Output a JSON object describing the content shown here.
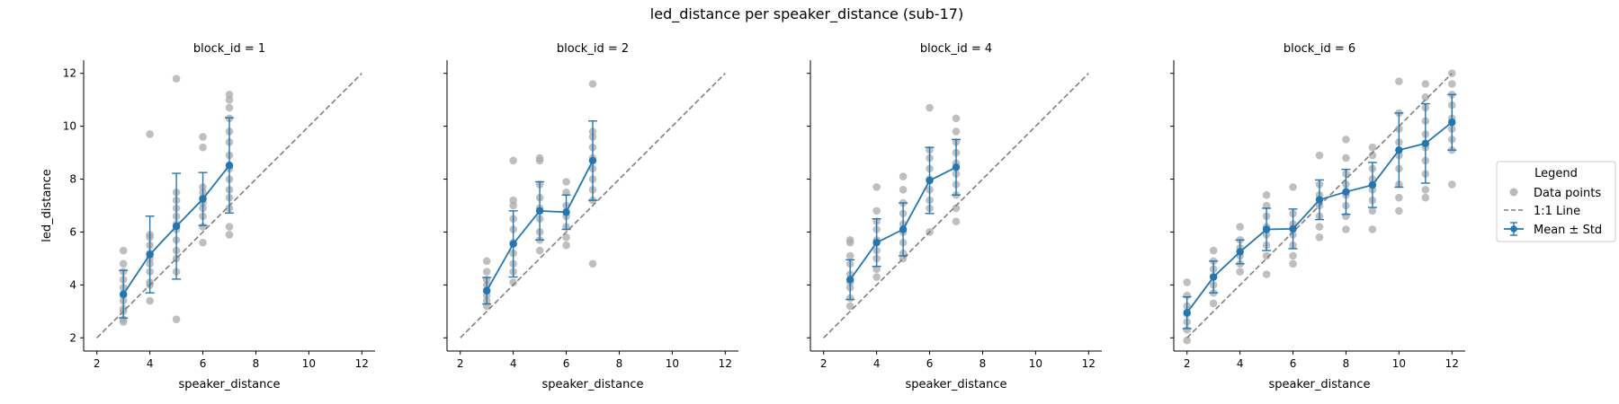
{
  "figure": {
    "title": "led_distance per speaker_distance (sub-17)"
  },
  "colors": {
    "mean": "#1f77b4",
    "points": "#a9a9a9",
    "ref_line": "#7f7f7f",
    "axes": "#000000"
  },
  "legend": {
    "title": "Legend",
    "placement": "right",
    "entries": [
      {
        "label": "Data points",
        "marker": "grey-dot"
      },
      {
        "label": "1:1 Line",
        "marker": "dashed-line"
      },
      {
        "label": "Mean ± Std",
        "marker": "errorbar-line"
      }
    ]
  },
  "chart_data": [
    {
      "type": "scatter",
      "title": "block_id = 1",
      "xlabel": "speaker_distance",
      "ylabel": "led_distance",
      "xlim": [
        1.5,
        12.5
      ],
      "ylim": [
        1.5,
        12.5
      ],
      "xticks": [
        2,
        4,
        6,
        8,
        10,
        12
      ],
      "yticks": [
        2,
        4,
        6,
        8,
        10,
        12
      ],
      "grid": false,
      "reference_line": [
        [
          2,
          2
        ],
        [
          12,
          12
        ]
      ],
      "mean_std": [
        {
          "x": 3,
          "mean": 3.65,
          "std": 0.9
        },
        {
          "x": 4,
          "mean": 5.15,
          "std": 1.45
        },
        {
          "x": 5,
          "mean": 6.22,
          "std": 2.0
        },
        {
          "x": 6,
          "mean": 7.25,
          "std": 1.0
        },
        {
          "x": 7,
          "mean": 8.52,
          "std": 1.8
        }
      ],
      "points": [
        {
          "x": 3,
          "y": [
            2.6,
            2.7,
            3.0,
            3.1,
            3.4,
            3.6,
            3.9,
            4.2,
            4.5,
            4.8,
            5.3
          ]
        },
        {
          "x": 4,
          "y": [
            3.4,
            4.0,
            4.1,
            4.5,
            4.8,
            5.0,
            5.2,
            5.5,
            5.8,
            5.9,
            9.7
          ]
        },
        {
          "x": 5,
          "y": [
            2.7,
            4.5,
            5.0,
            5.3,
            5.7,
            6.1,
            6.3,
            6.6,
            6.9,
            7.2,
            7.5,
            11.8
          ]
        },
        {
          "x": 6,
          "y": [
            5.6,
            6.2,
            6.6,
            6.9,
            7.1,
            7.3,
            7.5,
            7.7,
            9.2,
            9.6
          ]
        },
        {
          "x": 7,
          "y": [
            5.9,
            6.2,
            6.9,
            7.3,
            7.6,
            8.0,
            8.4,
            8.9,
            9.4,
            9.8,
            10.3,
            10.7,
            11.0,
            11.2
          ]
        }
      ]
    },
    {
      "type": "scatter",
      "title": "block_id = 2",
      "xlabel": "speaker_distance",
      "ylabel": "",
      "xlim": [
        1.5,
        12.5
      ],
      "ylim": [
        1.5,
        12.5
      ],
      "xticks": [
        2,
        4,
        6,
        8,
        10,
        12
      ],
      "yticks": [
        2,
        4,
        6,
        8,
        10,
        12
      ],
      "grid": false,
      "reference_line": [
        [
          2,
          2
        ],
        [
          12,
          12
        ]
      ],
      "mean_std": [
        {
          "x": 3,
          "mean": 3.78,
          "std": 0.5
        },
        {
          "x": 4,
          "mean": 5.55,
          "std": 1.25
        },
        {
          "x": 5,
          "mean": 6.8,
          "std": 1.1
        },
        {
          "x": 6,
          "mean": 6.75,
          "std": 0.65
        },
        {
          "x": 7,
          "mean": 8.7,
          "std": 1.5
        }
      ],
      "points": [
        {
          "x": 3,
          "y": [
            3.2,
            3.4,
            3.6,
            3.8,
            4.0,
            4.2,
            4.5,
            4.9
          ]
        },
        {
          "x": 4,
          "y": [
            4.1,
            4.5,
            4.8,
            5.2,
            5.6,
            6.1,
            6.5,
            7.0,
            7.2,
            8.7
          ]
        },
        {
          "x": 5,
          "y": [
            5.3,
            5.7,
            6.0,
            6.5,
            6.9,
            7.3,
            7.8,
            8.7,
            8.8
          ]
        },
        {
          "x": 6,
          "y": [
            5.5,
            5.8,
            6.2,
            6.6,
            7.0,
            7.5,
            7.9
          ]
        },
        {
          "x": 7,
          "y": [
            4.8,
            7.2,
            7.6,
            8.0,
            8.4,
            8.8,
            9.2,
            9.6,
            9.8,
            11.6
          ]
        }
      ]
    },
    {
      "type": "scatter",
      "title": "block_id = 4",
      "xlabel": "speaker_distance",
      "ylabel": "",
      "xlim": [
        1.5,
        12.5
      ],
      "ylim": [
        1.5,
        12.5
      ],
      "xticks": [
        2,
        4,
        6,
        8,
        10,
        12
      ],
      "yticks": [
        2,
        4,
        6,
        8,
        10,
        12
      ],
      "grid": false,
      "reference_line": [
        [
          2,
          2
        ],
        [
          12,
          12
        ]
      ],
      "mean_std": [
        {
          "x": 3,
          "mean": 4.2,
          "std": 0.75
        },
        {
          "x": 4,
          "mean": 5.6,
          "std": 0.9
        },
        {
          "x": 5,
          "mean": 6.1,
          "std": 1.0
        },
        {
          "x": 6,
          "mean": 7.95,
          "std": 1.25
        },
        {
          "x": 7,
          "mean": 8.45,
          "std": 1.05
        }
      ],
      "points": [
        {
          "x": 3,
          "y": [
            3.2,
            3.5,
            3.9,
            4.1,
            4.4,
            4.8,
            5.1,
            5.6,
            5.7
          ]
        },
        {
          "x": 4,
          "y": [
            4.3,
            4.6,
            5.0,
            5.3,
            5.7,
            6.1,
            6.4,
            6.8,
            7.7
          ]
        },
        {
          "x": 5,
          "y": [
            5.0,
            5.2,
            5.6,
            6.0,
            6.3,
            6.7,
            7.1,
            7.6,
            8.1
          ]
        },
        {
          "x": 6,
          "y": [
            6.0,
            6.9,
            7.2,
            7.6,
            8.0,
            8.4,
            8.8,
            9.1,
            10.7
          ]
        },
        {
          "x": 7,
          "y": [
            6.4,
            6.9,
            7.4,
            7.8,
            8.2,
            8.6,
            9.0,
            9.4,
            9.8,
            10.3
          ]
        }
      ]
    },
    {
      "type": "scatter",
      "title": "block_id = 6",
      "xlabel": "speaker_distance",
      "ylabel": "",
      "xlim": [
        1.5,
        12.5
      ],
      "ylim": [
        1.5,
        12.5
      ],
      "xticks": [
        2,
        4,
        6,
        8,
        10,
        12
      ],
      "yticks": [
        2,
        4,
        6,
        8,
        10,
        12
      ],
      "grid": false,
      "reference_line": [
        [
          2,
          2
        ],
        [
          12,
          12
        ]
      ],
      "mean_std": [
        {
          "x": 2,
          "mean": 2.95,
          "std": 0.6
        },
        {
          "x": 3,
          "mean": 4.3,
          "std": 0.6
        },
        {
          "x": 4,
          "mean": 5.25,
          "std": 0.45
        },
        {
          "x": 5,
          "mean": 6.1,
          "std": 0.8
        },
        {
          "x": 6,
          "mean": 6.12,
          "std": 0.75
        },
        {
          "x": 7,
          "mean": 7.22,
          "std": 0.75
        },
        {
          "x": 8,
          "mean": 7.52,
          "std": 0.85
        },
        {
          "x": 9,
          "mean": 7.78,
          "std": 0.85
        },
        {
          "x": 10,
          "mean": 9.1,
          "std": 1.4
        },
        {
          "x": 11,
          "mean": 9.35,
          "std": 1.5
        },
        {
          "x": 12,
          "mean": 10.15,
          "std": 1.05
        }
      ],
      "points": [
        {
          "x": 2,
          "y": [
            1.9,
            2.3,
            2.6,
            2.9,
            3.2,
            3.6,
            4.1
          ]
        },
        {
          "x": 3,
          "y": [
            3.3,
            3.7,
            4.0,
            4.3,
            4.6,
            4.9,
            5.3
          ]
        },
        {
          "x": 4,
          "y": [
            4.5,
            4.8,
            5.1,
            5.4,
            5.7,
            6.2
          ]
        },
        {
          "x": 5,
          "y": [
            4.4,
            5.1,
            5.5,
            5.9,
            6.2,
            6.6,
            7.0,
            7.4
          ]
        },
        {
          "x": 6,
          "y": [
            4.8,
            5.1,
            5.5,
            5.9,
            6.3,
            6.7,
            7.7
          ]
        },
        {
          "x": 7,
          "y": [
            5.8,
            6.2,
            6.6,
            7.0,
            7.4,
            7.8,
            8.9
          ]
        },
        {
          "x": 8,
          "y": [
            6.1,
            6.6,
            7.0,
            7.4,
            7.8,
            8.2,
            8.8,
            9.5
          ]
        },
        {
          "x": 9,
          "y": [
            6.1,
            6.8,
            7.2,
            7.6,
            8.0,
            8.4,
            8.9,
            9.2
          ]
        },
        {
          "x": 10,
          "y": [
            6.8,
            7.3,
            7.8,
            8.4,
            8.9,
            9.4,
            9.9,
            10.5,
            11.7
          ]
        },
        {
          "x": 11,
          "y": [
            7.3,
            7.6,
            8.2,
            8.7,
            9.2,
            9.7,
            10.2,
            10.7,
            11.1,
            11.6
          ]
        },
        {
          "x": 12,
          "y": [
            7.8,
            9.1,
            9.5,
            9.9,
            10.3,
            10.8,
            11.2,
            11.6,
            12.0
          ]
        }
      ]
    }
  ]
}
